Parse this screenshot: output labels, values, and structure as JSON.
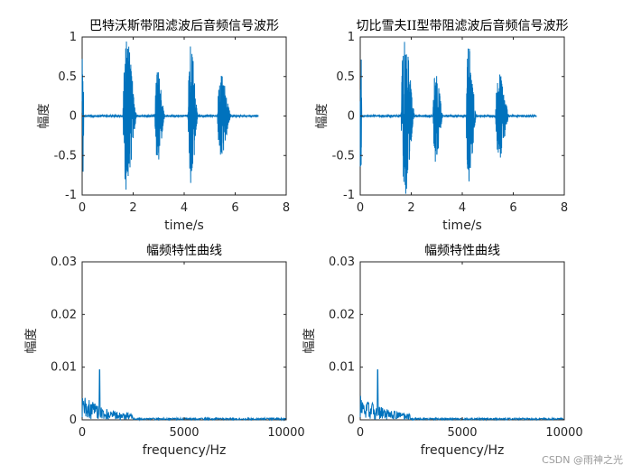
{
  "chart_data": [
    {
      "type": "line",
      "title": "巴特沃斯带阻滤波后音频信号波形",
      "xlabel": "time/s",
      "ylabel": "幅度",
      "xlim": [
        0,
        8
      ],
      "ylim": [
        -1,
        1
      ],
      "xticks": [
        "0",
        "2",
        "4",
        "6",
        "8"
      ],
      "yticks": [
        "-1",
        "-0.5",
        "0",
        "0.5",
        "1"
      ],
      "series": [
        {
          "color": "#0072bd",
          "baseline_until": 6.9,
          "bursts": [
            {
              "start": 1.6,
              "end": 2.15,
              "peak": 1.0
            },
            {
              "start": 2.85,
              "end": 3.25,
              "peak": 0.6
            },
            {
              "start": 4.15,
              "end": 4.55,
              "peak": 0.9
            },
            {
              "start": 5.3,
              "end": 5.85,
              "peak": 0.55
            }
          ]
        }
      ]
    },
    {
      "type": "line",
      "title": "切比雪夫II型带阻滤波后音频信号波形",
      "xlabel": "time/s",
      "ylabel": "幅度",
      "xlim": [
        0,
        8
      ],
      "ylim": [
        -1,
        1
      ],
      "xticks": [
        "0",
        "2",
        "4",
        "6",
        "8"
      ],
      "yticks": [
        "-1",
        "-0.5",
        "0",
        "0.5",
        "1"
      ],
      "series": [
        {
          "color": "#0072bd",
          "baseline_until": 6.9,
          "bursts": [
            {
              "start": 1.6,
              "end": 2.15,
              "peak": 1.0
            },
            {
              "start": 2.85,
              "end": 3.25,
              "peak": 0.6
            },
            {
              "start": 4.15,
              "end": 4.55,
              "peak": 0.9
            },
            {
              "start": 5.3,
              "end": 5.85,
              "peak": 0.55
            }
          ]
        }
      ]
    },
    {
      "type": "line",
      "title": "幅频特性曲线",
      "xlabel": "frequency/Hz",
      "ylabel": "幅度",
      "xlim": [
        0,
        10000
      ],
      "ylim": [
        0,
        0.03
      ],
      "xticks": [
        "0",
        "5000",
        "10000"
      ],
      "yticks": [
        "0",
        "0.01",
        "0.02",
        "0.03"
      ],
      "series": [
        {
          "color": "#0072bd",
          "peak_frequency": 850,
          "peak_value": 0.0095,
          "dense_until": 2500,
          "tail_until": 10000
        }
      ]
    },
    {
      "type": "line",
      "title": "幅频特性曲线",
      "xlabel": "frequency/Hz",
      "ylabel": "幅度",
      "xlim": [
        0,
        10000
      ],
      "ylim": [
        0,
        0.03
      ],
      "xticks": [
        "0",
        "5000",
        "10000"
      ],
      "yticks": [
        "0",
        "0.01",
        "0.02",
        "0.03"
      ],
      "series": [
        {
          "color": "#0072bd",
          "peak_frequency": 850,
          "peak_value": 0.0095,
          "dense_until": 2500,
          "tail_until": 10000
        }
      ]
    }
  ],
  "watermark": "CSDN @雨神之光"
}
